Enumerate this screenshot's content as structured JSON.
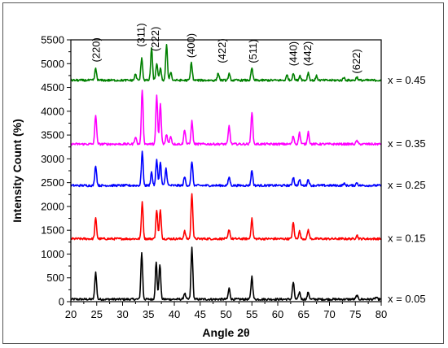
{
  "chart_data": {
    "type": "line",
    "xlabel": "Angle 2θ",
    "ylabel": "Intensity Count (%)",
    "xlim": [
      20,
      80
    ],
    "ylim": [
      0,
      5500
    ],
    "xticks": [
      20,
      25,
      30,
      35,
      40,
      45,
      50,
      55,
      60,
      65,
      70,
      75,
      80
    ],
    "yticks": [
      0,
      500,
      1000,
      1500,
      2000,
      2500,
      3000,
      3500,
      4000,
      4500,
      5000,
      5500
    ],
    "grid": false,
    "peak_labels": [
      {
        "label": "(220)",
        "x": 25.0,
        "y": 5030
      },
      {
        "label": "(311)",
        "x": 33.6,
        "y": 5350
      },
      {
        "label": "(222)",
        "x": 36.4,
        "y": 5260
      },
      {
        "label": "(400)",
        "x": 43.3,
        "y": 5120
      },
      {
        "label": "(422)",
        "x": 49.3,
        "y": 5010
      },
      {
        "label": "(511)",
        "x": 55.3,
        "y": 5010
      },
      {
        "label": "(440)",
        "x": 63.1,
        "y": 4950
      },
      {
        "label": "(442)",
        "x": 65.8,
        "y": 4950
      },
      {
        "label": "(622)",
        "x": 75.3,
        "y": 4790
      }
    ],
    "series": [
      {
        "name": "x = 0.05",
        "color": "#000000",
        "baseline": 50,
        "peaks": [
          [
            24.8,
            620
          ],
          [
            33.7,
            1030
          ],
          [
            36.5,
            820
          ],
          [
            37.2,
            790
          ],
          [
            40.0,
            50
          ],
          [
            42.0,
            180
          ],
          [
            43.4,
            1140
          ],
          [
            50.6,
            280
          ],
          [
            55.0,
            530
          ],
          [
            63.0,
            410
          ],
          [
            64.2,
            200
          ],
          [
            65.9,
            200
          ],
          [
            75.3,
            130
          ],
          [
            79.0,
            90
          ]
        ]
      },
      {
        "name": "x = 0.15",
        "color": "#ff0000",
        "baseline": 1320,
        "peaks": [
          [
            24.8,
            1750
          ],
          [
            33.8,
            2100
          ],
          [
            36.6,
            1930
          ],
          [
            37.3,
            1930
          ],
          [
            42.0,
            1480
          ],
          [
            43.4,
            2280
          ],
          [
            50.6,
            1520
          ],
          [
            55.0,
            1740
          ],
          [
            63.0,
            1660
          ],
          [
            64.2,
            1480
          ],
          [
            65.9,
            1510
          ],
          [
            75.3,
            1400
          ]
        ]
      },
      {
        "name": "x = 0.25",
        "color": "#0000ff",
        "baseline": 2440,
        "peaks": [
          [
            24.8,
            2860
          ],
          [
            33.8,
            3150
          ],
          [
            35.6,
            2720
          ],
          [
            36.6,
            2990
          ],
          [
            37.3,
            2920
          ],
          [
            38.4,
            2800
          ],
          [
            42.0,
            2620
          ],
          [
            43.4,
            2950
          ],
          [
            50.6,
            2620
          ],
          [
            55.0,
            2760
          ],
          [
            63.0,
            2620
          ],
          [
            64.2,
            2560
          ],
          [
            65.9,
            2570
          ],
          [
            72.8,
            2480
          ],
          [
            75.3,
            2500
          ]
        ]
      },
      {
        "name": "x = 0.35",
        "color": "#ff00ff",
        "baseline": 3310,
        "peaks": [
          [
            24.8,
            3930
          ],
          [
            32.5,
            3470
          ],
          [
            33.8,
            4460
          ],
          [
            36.6,
            4330
          ],
          [
            37.3,
            4150
          ],
          [
            38.5,
            3520
          ],
          [
            39.3,
            3480
          ],
          [
            42.0,
            3620
          ],
          [
            43.4,
            3790
          ],
          [
            50.6,
            3690
          ],
          [
            55.0,
            3990
          ],
          [
            63.0,
            3480
          ],
          [
            64.2,
            3550
          ],
          [
            65.9,
            3570
          ],
          [
            75.3,
            3380
          ]
        ]
      },
      {
        "name": "x = 0.45",
        "color": "#008000",
        "baseline": 4650,
        "peaks": [
          [
            24.8,
            4890
          ],
          [
            32.5,
            4780
          ],
          [
            33.7,
            5130
          ],
          [
            35.6,
            5330
          ],
          [
            36.6,
            5010
          ],
          [
            37.3,
            4900
          ],
          [
            38.5,
            5390
          ],
          [
            39.3,
            4830
          ],
          [
            43.3,
            5020
          ],
          [
            48.5,
            4800
          ],
          [
            50.6,
            4780
          ],
          [
            55.0,
            4900
          ],
          [
            61.8,
            4760
          ],
          [
            63.0,
            4800
          ],
          [
            64.3,
            4750
          ],
          [
            65.9,
            4810
          ],
          [
            67.5,
            4740
          ],
          [
            72.8,
            4710
          ],
          [
            75.3,
            4720
          ]
        ]
      }
    ]
  }
}
